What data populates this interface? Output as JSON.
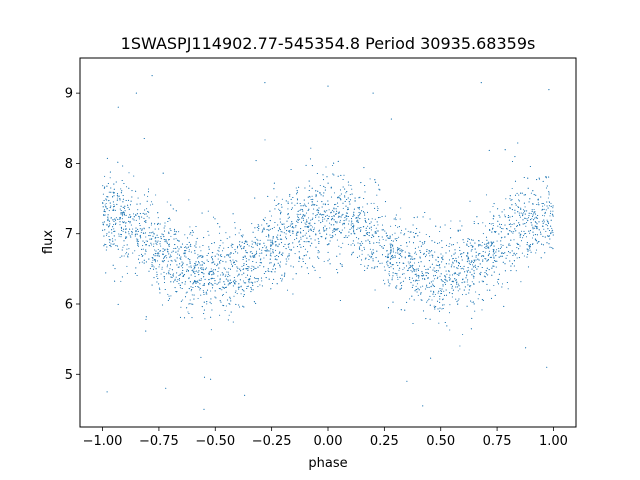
{
  "chart_data": {
    "type": "scatter",
    "title": "1SWASPJ114902.77-545354.8 Period 30935.68359s",
    "xlabel": "phase",
    "ylabel": "flux",
    "xlim": [
      -1.1,
      1.1
    ],
    "ylim": [
      4.25,
      9.5
    ],
    "xticks": [
      -1.0,
      -0.75,
      -0.5,
      -0.25,
      0.0,
      0.25,
      0.5,
      0.75,
      1.0
    ],
    "xtick_labels": [
      "−1.00",
      "−0.75",
      "−0.50",
      "−0.25",
      "0.00",
      "0.25",
      "0.50",
      "0.75",
      "1.00"
    ],
    "yticks": [
      5,
      6,
      7,
      8,
      9
    ],
    "ytick_labels": [
      "5",
      "6",
      "7",
      "8",
      "9"
    ],
    "grid": false,
    "marker_color": "#1f77b4",
    "series": [
      {
        "description_of_trend": "folded light curve: sinusoidal, maxima near phase -1, 0, 1 (~7.2), minima near phase -0.5 and 0.5 (~6.4); amplitude ~0.4; scatter ~0.3 with outliers 4.5–9.3; x range -1 to 1",
        "model": {
          "mean": 6.82,
          "amplitude": 0.4,
          "cycles_per_unit_phase": 1,
          "peak_phase": 0.0,
          "scatter": 0.3
        },
        "values_sample": [
          [
            -1.0,
            7.2
          ],
          [
            -0.9,
            7.1
          ],
          [
            -0.8,
            7.0
          ],
          [
            -0.7,
            6.8
          ],
          [
            -0.6,
            6.6
          ],
          [
            -0.5,
            6.4
          ],
          [
            -0.4,
            6.5
          ],
          [
            -0.3,
            6.6
          ],
          [
            -0.2,
            6.9
          ],
          [
            -0.1,
            7.1
          ],
          [
            0.0,
            7.2
          ],
          [
            0.1,
            7.1
          ],
          [
            0.2,
            6.9
          ],
          [
            0.3,
            6.7
          ],
          [
            0.4,
            6.5
          ],
          [
            0.5,
            6.4
          ],
          [
            0.6,
            6.5
          ],
          [
            0.7,
            6.7
          ],
          [
            0.8,
            6.9
          ],
          [
            0.9,
            7.1
          ],
          [
            1.0,
            7.2
          ]
        ],
        "outliers": [
          [
            -0.93,
            8.8
          ],
          [
            -0.85,
            9.0
          ],
          [
            -0.78,
            9.25
          ],
          [
            -0.72,
            4.8
          ],
          [
            -0.55,
            4.5
          ],
          [
            -0.37,
            4.7
          ],
          [
            -0.28,
            9.15
          ],
          [
            0.0,
            9.1
          ],
          [
            0.2,
            9.0
          ],
          [
            0.35,
            4.9
          ],
          [
            0.42,
            4.55
          ],
          [
            0.68,
            9.15
          ],
          [
            0.98,
            9.05
          ],
          [
            0.97,
            5.1
          ],
          [
            -0.98,
            4.75
          ]
        ]
      }
    ]
  }
}
